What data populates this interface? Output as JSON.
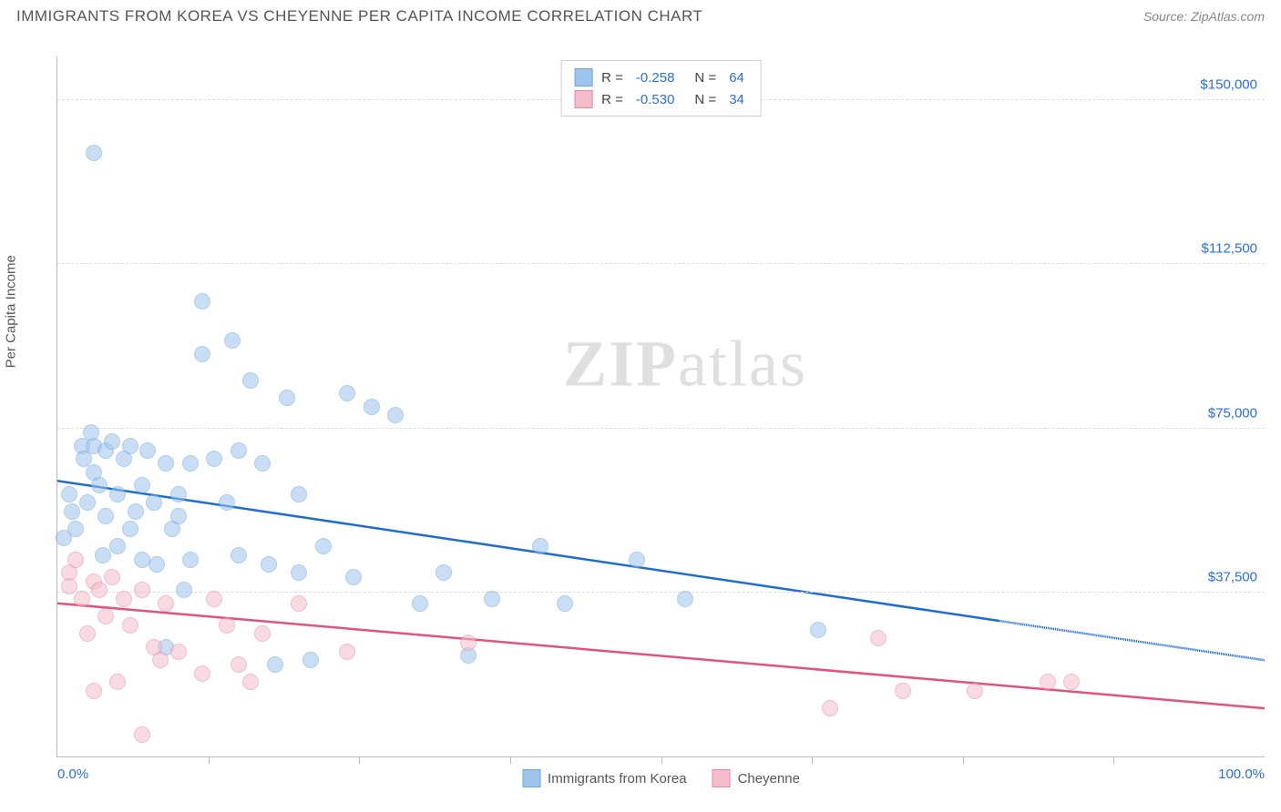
{
  "header": {
    "title": "IMMIGRANTS FROM KOREA VS CHEYENNE PER CAPITA INCOME CORRELATION CHART",
    "source": "Source: ZipAtlas.com"
  },
  "watermark": {
    "zip": "ZIP",
    "atlas": "atlas"
  },
  "chart": {
    "type": "scatter",
    "ylabel": "Per Capita Income",
    "xlim": [
      0,
      100
    ],
    "ylim": [
      0,
      160000
    ],
    "yticks": [
      {
        "v": 37500,
        "label": "$37,500"
      },
      {
        "v": 75000,
        "label": "$75,000"
      },
      {
        "v": 112500,
        "label": "$112,500"
      },
      {
        "v": 150000,
        "label": "$150,000"
      }
    ],
    "xticks_major": [
      0,
      50,
      100
    ],
    "xticks_labels": [
      {
        "v": 0,
        "label": "0.0%",
        "align": "left"
      },
      {
        "v": 100,
        "label": "100.0%",
        "align": "right"
      }
    ],
    "xticks_minor_step": 12.5,
    "background_color": "#ffffff",
    "grid_color": "#dddddd",
    "axis_color": "#bbbbbb",
    "yaxis_label_color": "#2a6fd6",
    "marker_radius": 9,
    "marker_opacity": 0.55,
    "series": [
      {
        "name": "Immigrants from Korea",
        "color": "#9ec4ec",
        "border": "#6fa6de",
        "r_label": "R =",
        "r_value": "-0.258",
        "n_label": "N =",
        "n_value": "64",
        "trend": {
          "color": "#1d6dd0",
          "width": 2.5,
          "solid": {
            "x1": 0,
            "y1": 63000,
            "x2": 78,
            "y2": 31000
          },
          "dashed": {
            "x1": 78,
            "y1": 31000,
            "x2": 100,
            "y2": 22000
          }
        },
        "points": [
          [
            3,
            138000
          ],
          [
            1.2,
            56000
          ],
          [
            1.5,
            52000
          ],
          [
            2,
            71000
          ],
          [
            2.2,
            68000
          ],
          [
            2.5,
            58000
          ],
          [
            3,
            65000
          ],
          [
            3,
            71000
          ],
          [
            3.5,
            62000
          ],
          [
            4,
            70000
          ],
          [
            4,
            55000
          ],
          [
            4.5,
            72000
          ],
          [
            5,
            48000
          ],
          [
            5,
            60000
          ],
          [
            5.5,
            68000
          ],
          [
            6,
            71000
          ],
          [
            6,
            52000
          ],
          [
            6.5,
            56000
          ],
          [
            7,
            62000
          ],
          [
            7,
            45000
          ],
          [
            7.5,
            70000
          ],
          [
            8,
            58000
          ],
          [
            8.2,
            44000
          ],
          [
            9,
            67000
          ],
          [
            9,
            25000
          ],
          [
            9.5,
            52000
          ],
          [
            10,
            55000
          ],
          [
            10,
            60000
          ],
          [
            10.5,
            38000
          ],
          [
            11,
            45000
          ],
          [
            11,
            67000
          ],
          [
            12,
            104000
          ],
          [
            12,
            92000
          ],
          [
            13,
            68000
          ],
          [
            14,
            58000
          ],
          [
            14.5,
            95000
          ],
          [
            15,
            70000
          ],
          [
            15,
            46000
          ],
          [
            16,
            86000
          ],
          [
            17,
            67000
          ],
          [
            17.5,
            44000
          ],
          [
            18,
            21000
          ],
          [
            19,
            82000
          ],
          [
            20,
            42000
          ],
          [
            20,
            60000
          ],
          [
            21,
            22000
          ],
          [
            22,
            48000
          ],
          [
            24,
            83000
          ],
          [
            24.5,
            41000
          ],
          [
            26,
            80000
          ],
          [
            28,
            78000
          ],
          [
            30,
            35000
          ],
          [
            32,
            42000
          ],
          [
            34,
            23000
          ],
          [
            36,
            36000
          ],
          [
            40,
            48000
          ],
          [
            42,
            35000
          ],
          [
            48,
            45000
          ],
          [
            52,
            36000
          ],
          [
            63,
            29000
          ],
          [
            1,
            60000
          ],
          [
            2.8,
            74000
          ],
          [
            3.8,
            46000
          ],
          [
            0.5,
            50000
          ]
        ]
      },
      {
        "name": "Cheyenne",
        "color": "#f4bccb",
        "border": "#e68aa5",
        "r_label": "R =",
        "r_value": "-0.530",
        "n_label": "N =",
        "n_value": "34",
        "trend": {
          "color": "#e2527b",
          "width": 2.5,
          "solid": {
            "x1": 0,
            "y1": 35000,
            "x2": 100,
            "y2": 11000
          },
          "dashed": null
        },
        "points": [
          [
            1,
            42000
          ],
          [
            1,
            39000
          ],
          [
            1.5,
            45000
          ],
          [
            2,
            36000
          ],
          [
            2.5,
            28000
          ],
          [
            3,
            40000
          ],
          [
            3,
            15000
          ],
          [
            3.5,
            38000
          ],
          [
            4,
            32000
          ],
          [
            4.5,
            41000
          ],
          [
            5,
            17000
          ],
          [
            5.5,
            36000
          ],
          [
            6,
            30000
          ],
          [
            7,
            5000
          ],
          [
            7,
            38000
          ],
          [
            8,
            25000
          ],
          [
            8.5,
            22000
          ],
          [
            9,
            35000
          ],
          [
            10,
            24000
          ],
          [
            12,
            19000
          ],
          [
            13,
            36000
          ],
          [
            14,
            30000
          ],
          [
            15,
            21000
          ],
          [
            16,
            17000
          ],
          [
            17,
            28000
          ],
          [
            20,
            35000
          ],
          [
            24,
            24000
          ],
          [
            34,
            26000
          ],
          [
            64,
            11000
          ],
          [
            68,
            27000
          ],
          [
            70,
            15000
          ],
          [
            76,
            15000
          ],
          [
            82,
            17000
          ],
          [
            84,
            17000
          ]
        ]
      }
    ]
  }
}
